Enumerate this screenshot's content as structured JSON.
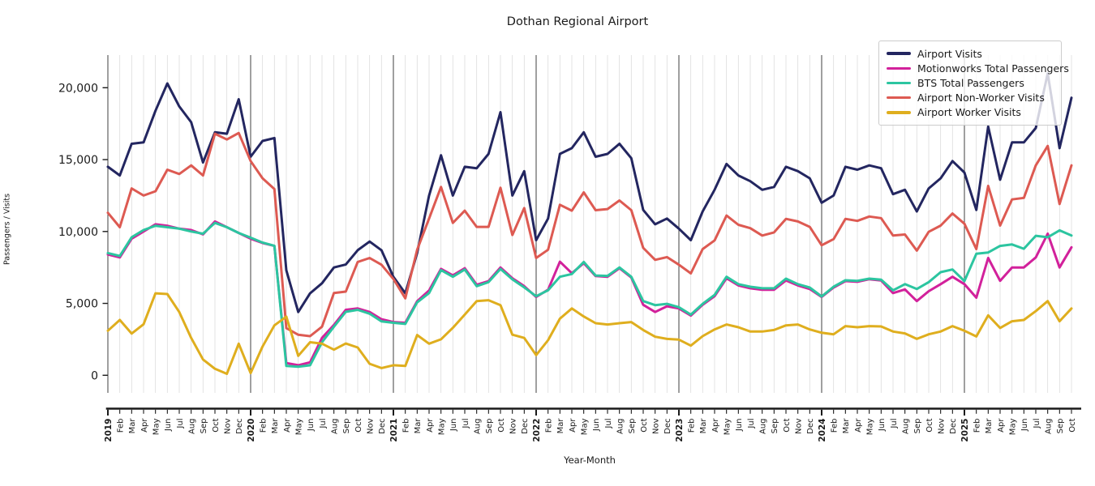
{
  "title": "Dothan Regional Airport",
  "x_axis_label": "Year-Month",
  "y_axis_label": "Passengers / Visits",
  "chart_data": {
    "type": "line",
    "title": "Dothan Regional Airport",
    "xlabel": "Year-Month",
    "ylabel": "Passengers / Visits",
    "grid": "vertical monthly gridlines, darker line at each January",
    "legend_position": "upper right",
    "yticks": [
      0,
      5000,
      10000,
      15000,
      20000
    ],
    "ylim": [
      -1200,
      22250
    ],
    "tick_labels": [
      "2019",
      "Feb",
      "Mar",
      "Apr",
      "May",
      "Jun",
      "Jul",
      "Aug",
      "Sep",
      "Oct",
      "Nov",
      "Dec",
      "2020",
      "Feb",
      "Mar",
      "Apr",
      "May",
      "Jun",
      "Jul",
      "Aug",
      "Sep",
      "Oct",
      "Nov",
      "Dec",
      "2021",
      "Feb",
      "Mar",
      "Apr",
      "May",
      "Jun",
      "Jul",
      "Aug",
      "Sep",
      "Oct",
      "Nov",
      "Dec",
      "2022",
      "Feb",
      "Mar",
      "Apr",
      "May",
      "Jun",
      "Jul",
      "Aug",
      "Sep",
      "Oct",
      "Nov",
      "Dec",
      "2023",
      "Feb",
      "Mar",
      "Apr",
      "May",
      "Jun",
      "Jul",
      "Aug",
      "Sep",
      "Oct",
      "Nov",
      "Dec",
      "2024",
      "Feb",
      "Mar",
      "Apr",
      "May",
      "Jun",
      "Jul",
      "Aug",
      "Sep",
      "Oct",
      "Nov",
      "Dec",
      "2025",
      "Feb",
      "Mar",
      "Apr",
      "May",
      "Jun",
      "Jul",
      "Aug",
      "Sep",
      "Oct"
    ],
    "series": [
      {
        "name": "Airport Visits",
        "color": "#232660",
        "values": [
          14500,
          13900,
          16100,
          16200,
          18400,
          20300,
          18700,
          17600,
          14800,
          16900,
          16800,
          19200,
          15200,
          16300,
          16500,
          7300,
          4400,
          5700,
          6400,
          7500,
          7700,
          8700,
          9300,
          8700,
          6850,
          5700,
          8500,
          12500,
          15300,
          12500,
          14500,
          14400,
          15400,
          18300,
          12500,
          14200,
          9400,
          10900,
          15400,
          15800,
          16900,
          15200,
          15400,
          16100,
          15100,
          11500,
          10500,
          10900,
          10200,
          9400,
          11400,
          12900,
          14700,
          13900,
          13500,
          12900,
          13100,
          14500,
          14200,
          13700,
          12000,
          12500,
          14500,
          14300,
          14600,
          14400,
          12600,
          12900,
          11400,
          13000,
          13700,
          14900,
          14100,
          11500,
          17300,
          13600,
          16200,
          16200,
          17200,
          21000,
          15800,
          19300
        ]
      },
      {
        "name": "Motionworks Total Passengers",
        "color": "#d2219b",
        "values": [
          8400,
          8200,
          9500,
          10000,
          10500,
          10400,
          10200,
          10100,
          9800,
          10700,
          10300,
          9900,
          9500,
          9200,
          9000,
          850,
          700,
          900,
          2600,
          3500,
          4550,
          4650,
          4400,
          3900,
          3700,
          3650,
          5150,
          5900,
          7400,
          6950,
          7450,
          6300,
          6550,
          7500,
          6750,
          6200,
          5450,
          5950,
          7900,
          7100,
          7800,
          6900,
          6850,
          7450,
          6800,
          4900,
          4400,
          4800,
          4650,
          4150,
          4900,
          5500,
          6750,
          6250,
          6050,
          5950,
          5950,
          6600,
          6250,
          6000,
          5450,
          6100,
          6550,
          6500,
          6680,
          6600,
          5720,
          5970,
          5160,
          5850,
          6340,
          6850,
          6340,
          5400,
          8160,
          6570,
          7500,
          7500,
          8200,
          9850,
          7500,
          8900
        ]
      },
      {
        "name": "BTS Total Passengers",
        "color": "#2cc5a0",
        "values": [
          8500,
          8300,
          9600,
          10100,
          10400,
          10300,
          10200,
          10000,
          9850,
          10600,
          10300,
          9900,
          9570,
          9230,
          9010,
          650,
          600,
          700,
          2300,
          3380,
          4410,
          4550,
          4280,
          3750,
          3650,
          3570,
          5070,
          5720,
          7320,
          6850,
          7360,
          6200,
          6480,
          7400,
          6670,
          6110,
          5500,
          5910,
          6850,
          7040,
          7880,
          6940,
          6910,
          7500,
          6850,
          5160,
          4880,
          4970,
          4730,
          4220,
          4970,
          5590,
          6850,
          6340,
          6160,
          6050,
          6050,
          6720,
          6340,
          6100,
          5480,
          6160,
          6610,
          6570,
          6720,
          6650,
          5910,
          6340,
          6000,
          6480,
          7170,
          7360,
          6550,
          8450,
          8540,
          9000,
          9100,
          8800,
          9700,
          9600,
          10080,
          9720
        ]
      },
      {
        "name": "Airport Non-Worker Visits",
        "color": "#dd5a52",
        "values": [
          11300,
          10300,
          13000,
          12500,
          12800,
          14300,
          14000,
          14600,
          13900,
          16800,
          16400,
          16850,
          14900,
          13700,
          12950,
          3280,
          2815,
          2720,
          3380,
          5720,
          5820,
          7880,
          8160,
          7690,
          6700,
          5350,
          8730,
          10900,
          13100,
          10600,
          11450,
          10320,
          10320,
          13040,
          9760,
          11630,
          8160,
          8730,
          11860,
          11450,
          12720,
          11480,
          11560,
          12160,
          11480,
          8860,
          8030,
          8220,
          7690,
          7090,
          8780,
          9380,
          11110,
          10470,
          10230,
          9720,
          9940,
          10880,
          10700,
          10320,
          9040,
          9470,
          10880,
          10740,
          11040,
          10930,
          9720,
          9790,
          8670,
          9980,
          10410,
          11250,
          10540,
          8780,
          13170,
          10410,
          12230,
          12340,
          14600,
          15950,
          11910,
          14600
        ]
      },
      {
        "name": "Airport Worker Visits",
        "color": "#dfae1e",
        "values": [
          3100,
          3850,
          2900,
          3550,
          5700,
          5650,
          4400,
          2600,
          1100,
          450,
          100,
          2200,
          150,
          2000,
          3470,
          4080,
          1350,
          2300,
          2200,
          1780,
          2210,
          1930,
          800,
          500,
          700,
          650,
          2800,
          2200,
          2500,
          3300,
          4220,
          5160,
          5220,
          4880,
          2820,
          2600,
          1400,
          2440,
          3940,
          4650,
          4090,
          3620,
          3530,
          3620,
          3700,
          3150,
          2680,
          2530,
          2480,
          2060,
          2720,
          3190,
          3530,
          3340,
          3040,
          3040,
          3150,
          3470,
          3530,
          3190,
          2960,
          2850,
          3420,
          3340,
          3420,
          3400,
          3040,
          2910,
          2530,
          2850,
          3040,
          3420,
          3100,
          2700,
          4170,
          3290,
          3760,
          3850,
          4460,
          5160,
          3760,
          4650
        ]
      }
    ]
  }
}
